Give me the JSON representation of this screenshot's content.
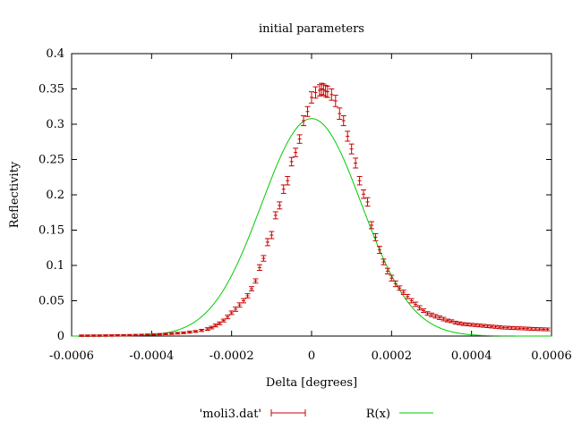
{
  "chart_data": {
    "type": "scatter",
    "title": "initial parameters",
    "xlabel": "Delta [degrees]",
    "ylabel": "Reflectivity",
    "xlim": [
      -0.0006,
      0.0006
    ],
    "ylim": [
      0,
      0.4
    ],
    "x_ticks": [
      -0.0006,
      -0.0004,
      -0.0002,
      0,
      0.0002,
      0.0004,
      0.0006
    ],
    "x_tick_labels": [
      "-0.0006",
      "-0.0004",
      "-0.0002",
      "0",
      "0.0002",
      "0.0004",
      "0.0006"
    ],
    "y_ticks": [
      0,
      0.05,
      0.1,
      0.15,
      0.2,
      0.25,
      0.3,
      0.35,
      0.4
    ],
    "y_tick_labels": [
      "0",
      "0.05",
      "0.1",
      "0.15",
      "0.2",
      "0.25",
      "0.3",
      "0.35",
      "0.4"
    ],
    "grid": false,
    "legend_position": "bottom",
    "series": [
      {
        "name": "'moli3.dat'",
        "style": "errorbars",
        "color": "#cc0000",
        "points": [
          [
            -0.000575,
            0.0005,
            0.001
          ],
          [
            -0.00056,
            0.0005,
            0.001
          ],
          [
            -0.000545,
            0.0006,
            0.001
          ],
          [
            -0.00053,
            0.0006,
            0.001
          ],
          [
            -0.000515,
            0.0007,
            0.001
          ],
          [
            -0.0005,
            0.0008,
            0.001
          ],
          [
            -0.000485,
            0.0009,
            0.001
          ],
          [
            -0.00047,
            0.001,
            0.001
          ],
          [
            -0.000455,
            0.0012,
            0.001
          ],
          [
            -0.00044,
            0.0014,
            0.001
          ],
          [
            -0.000425,
            0.0016,
            0.001
          ],
          [
            -0.00041,
            0.0019,
            0.001
          ],
          [
            -0.000395,
            0.0022,
            0.001
          ],
          [
            -0.00038,
            0.0026,
            0.001
          ],
          [
            -0.000365,
            0.003,
            0.001
          ],
          [
            -0.00035,
            0.0035,
            0.0012
          ],
          [
            -0.000335,
            0.004,
            0.0012
          ],
          [
            -0.00032,
            0.0046,
            0.0012
          ],
          [
            -0.000305,
            0.0055,
            0.0013
          ],
          [
            -0.00029,
            0.0065,
            0.0013
          ],
          [
            -0.000275,
            0.008,
            0.0015
          ],
          [
            -0.00026,
            0.01,
            0.0018
          ],
          [
            -0.00025,
            0.012,
            0.0018
          ],
          [
            -0.00024,
            0.015,
            0.002
          ],
          [
            -0.00023,
            0.018,
            0.002
          ],
          [
            -0.00022,
            0.022,
            0.002
          ],
          [
            -0.00021,
            0.027,
            0.0025
          ],
          [
            -0.0002,
            0.033,
            0.0025
          ],
          [
            -0.00019,
            0.038,
            0.003
          ],
          [
            -0.00018,
            0.044,
            0.003
          ],
          [
            -0.00017,
            0.05,
            0.003
          ],
          [
            -0.00016,
            0.057,
            0.003
          ],
          [
            -0.00015,
            0.067,
            0.003
          ],
          [
            -0.00014,
            0.078,
            0.003
          ],
          [
            -0.00013,
            0.097,
            0.004
          ],
          [
            -0.00012,
            0.11,
            0.004
          ],
          [
            -0.00011,
            0.133,
            0.005
          ],
          [
            -0.0001,
            0.143,
            0.005
          ],
          [
            -9e-05,
            0.171,
            0.005
          ],
          [
            -8e-05,
            0.185,
            0.005
          ],
          [
            -7e-05,
            0.208,
            0.006
          ],
          [
            -6e-05,
            0.22,
            0.006
          ],
          [
            -5e-05,
            0.247,
            0.006
          ],
          [
            -4e-05,
            0.26,
            0.006
          ],
          [
            -3e-05,
            0.279,
            0.006
          ],
          [
            -2e-05,
            0.305,
            0.007
          ],
          [
            -1e-05,
            0.318,
            0.007
          ],
          [
            0.0,
            0.338,
            0.008
          ],
          [
            1e-05,
            0.345,
            0.008
          ],
          [
            2e-05,
            0.348,
            0.008
          ],
          [
            2.5e-05,
            0.35,
            0.008
          ],
          [
            3e-05,
            0.349,
            0.008
          ],
          [
            3.5e-05,
            0.347,
            0.008
          ],
          [
            4e-05,
            0.346,
            0.008
          ],
          [
            5e-05,
            0.342,
            0.008
          ],
          [
            6e-05,
            0.333,
            0.008
          ],
          [
            7e-05,
            0.315,
            0.008
          ],
          [
            8e-05,
            0.305,
            0.007
          ],
          [
            9e-05,
            0.283,
            0.007
          ],
          [
            0.0001,
            0.265,
            0.007
          ],
          [
            0.00011,
            0.245,
            0.007
          ],
          [
            0.00012,
            0.22,
            0.006
          ],
          [
            0.00013,
            0.201,
            0.006
          ],
          [
            0.00014,
            0.19,
            0.006
          ],
          [
            0.00015,
            0.157,
            0.005
          ],
          [
            0.00016,
            0.14,
            0.005
          ],
          [
            0.00017,
            0.122,
            0.005
          ],
          [
            0.00018,
            0.105,
            0.004
          ],
          [
            0.00019,
            0.092,
            0.004
          ],
          [
            0.0002,
            0.082,
            0.004
          ],
          [
            0.00021,
            0.074,
            0.004
          ],
          [
            0.00022,
            0.068,
            0.003
          ],
          [
            0.00023,
            0.062,
            0.003
          ],
          [
            0.00024,
            0.056,
            0.003
          ],
          [
            0.00025,
            0.05,
            0.003
          ],
          [
            0.00026,
            0.045,
            0.003
          ],
          [
            0.00027,
            0.04,
            0.003
          ],
          [
            0.00028,
            0.036,
            0.0025
          ],
          [
            0.00029,
            0.032,
            0.0025
          ],
          [
            0.0003,
            0.03,
            0.0025
          ],
          [
            0.00031,
            0.028,
            0.0025
          ],
          [
            0.00032,
            0.026,
            0.0025
          ],
          [
            0.00033,
            0.024,
            0.0025
          ],
          [
            0.00034,
            0.022,
            0.002
          ],
          [
            0.00035,
            0.021,
            0.002
          ],
          [
            0.00036,
            0.019,
            0.002
          ],
          [
            0.00037,
            0.018,
            0.002
          ],
          [
            0.00038,
            0.017,
            0.002
          ],
          [
            0.00039,
            0.0165,
            0.002
          ],
          [
            0.0004,
            0.016,
            0.002
          ],
          [
            0.00041,
            0.0155,
            0.002
          ],
          [
            0.00042,
            0.015,
            0.002
          ],
          [
            0.00043,
            0.0145,
            0.002
          ],
          [
            0.00044,
            0.014,
            0.002
          ],
          [
            0.00045,
            0.0135,
            0.002
          ],
          [
            0.00046,
            0.013,
            0.002
          ],
          [
            0.00047,
            0.0125,
            0.002
          ],
          [
            0.00048,
            0.012,
            0.002
          ],
          [
            0.00049,
            0.0118,
            0.002
          ],
          [
            0.0005,
            0.0115,
            0.002
          ],
          [
            0.00051,
            0.0112,
            0.002
          ],
          [
            0.00052,
            0.011,
            0.002
          ],
          [
            0.00053,
            0.0108,
            0.002
          ],
          [
            0.00054,
            0.0105,
            0.002
          ],
          [
            0.00055,
            0.0102,
            0.002
          ],
          [
            0.00056,
            0.01,
            0.002
          ],
          [
            0.00057,
            0.0098,
            0.002
          ],
          [
            0.00058,
            0.0096,
            0.002
          ],
          [
            0.00059,
            0.0094,
            0.002
          ]
        ]
      },
      {
        "name": "R(x)",
        "style": "line",
        "color": "#00cc00",
        "function": "gaussian",
        "amplitude": 0.308,
        "center": 0,
        "sigma": 0.000125
      }
    ]
  }
}
